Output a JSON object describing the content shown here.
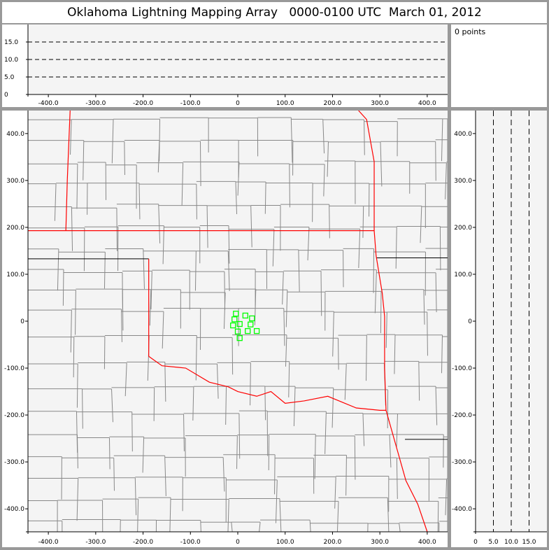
{
  "title": "Oklahoma Lightning Mapping Array   0000-0100 UTC  March 01, 2012",
  "info": {
    "points_label": "0 points"
  },
  "colors": {
    "plot_bg": "#f4f4f4",
    "frame": "#999999",
    "state_border": "#ff0000",
    "county_line": "#888888",
    "source_marker": "#00ff00"
  },
  "chart_data": [
    {
      "type": "scatter",
      "panel": "plan-view map",
      "xlim": [
        -443,
        443
      ],
      "ylim": [
        -449,
        449
      ],
      "x_ticks": [
        "-400.0",
        "-300.0",
        "-200.0",
        "-100.0",
        "0",
        "100.0",
        "200.0",
        "300.0",
        "400.0"
      ],
      "y_ticks": [
        "400.0",
        "300.0",
        "200.0",
        "100.0",
        "0",
        "-100.0",
        "-200.0",
        "-300.0",
        "-400.0"
      ],
      "grid": false,
      "series": [
        {
          "marker": "hollow-square",
          "color": "#00ff00",
          "x": [
            -4,
            16,
            30,
            -7,
            4,
            -10,
            27,
            0,
            21,
            40,
            4
          ],
          "y": [
            16,
            12,
            6,
            4,
            -6,
            -9,
            -7,
            -22,
            -21,
            -21,
            -36
          ]
        }
      ]
    },
    {
      "type": "line",
      "panel": "east-west vs altitude",
      "xlim": [
        -443,
        443
      ],
      "ylim": [
        0,
        20
      ],
      "x_ticks": [
        "-400.0",
        "-300.0",
        "-200.0",
        "-100.0",
        "0",
        "100.0",
        "200.0",
        "300.0",
        "400.0"
      ],
      "y_ticks": [
        "15.0",
        "10.0",
        "5.0",
        "0"
      ],
      "reference_lines": [
        5,
        10,
        15
      ],
      "series": []
    },
    {
      "type": "line",
      "panel": "altitude vs north-south",
      "xlim": [
        0,
        20
      ],
      "ylim": [
        -449,
        449
      ],
      "x_ticks": [
        "0",
        "5.0",
        "10.0",
        "15.0"
      ],
      "y_ticks": [
        "400.0",
        "300.0",
        "200.0",
        "100.0",
        "0",
        "-100.0",
        "-200.0",
        "-300.0",
        "-400.0"
      ],
      "reference_lines": [
        5,
        10,
        15
      ],
      "series": []
    }
  ]
}
